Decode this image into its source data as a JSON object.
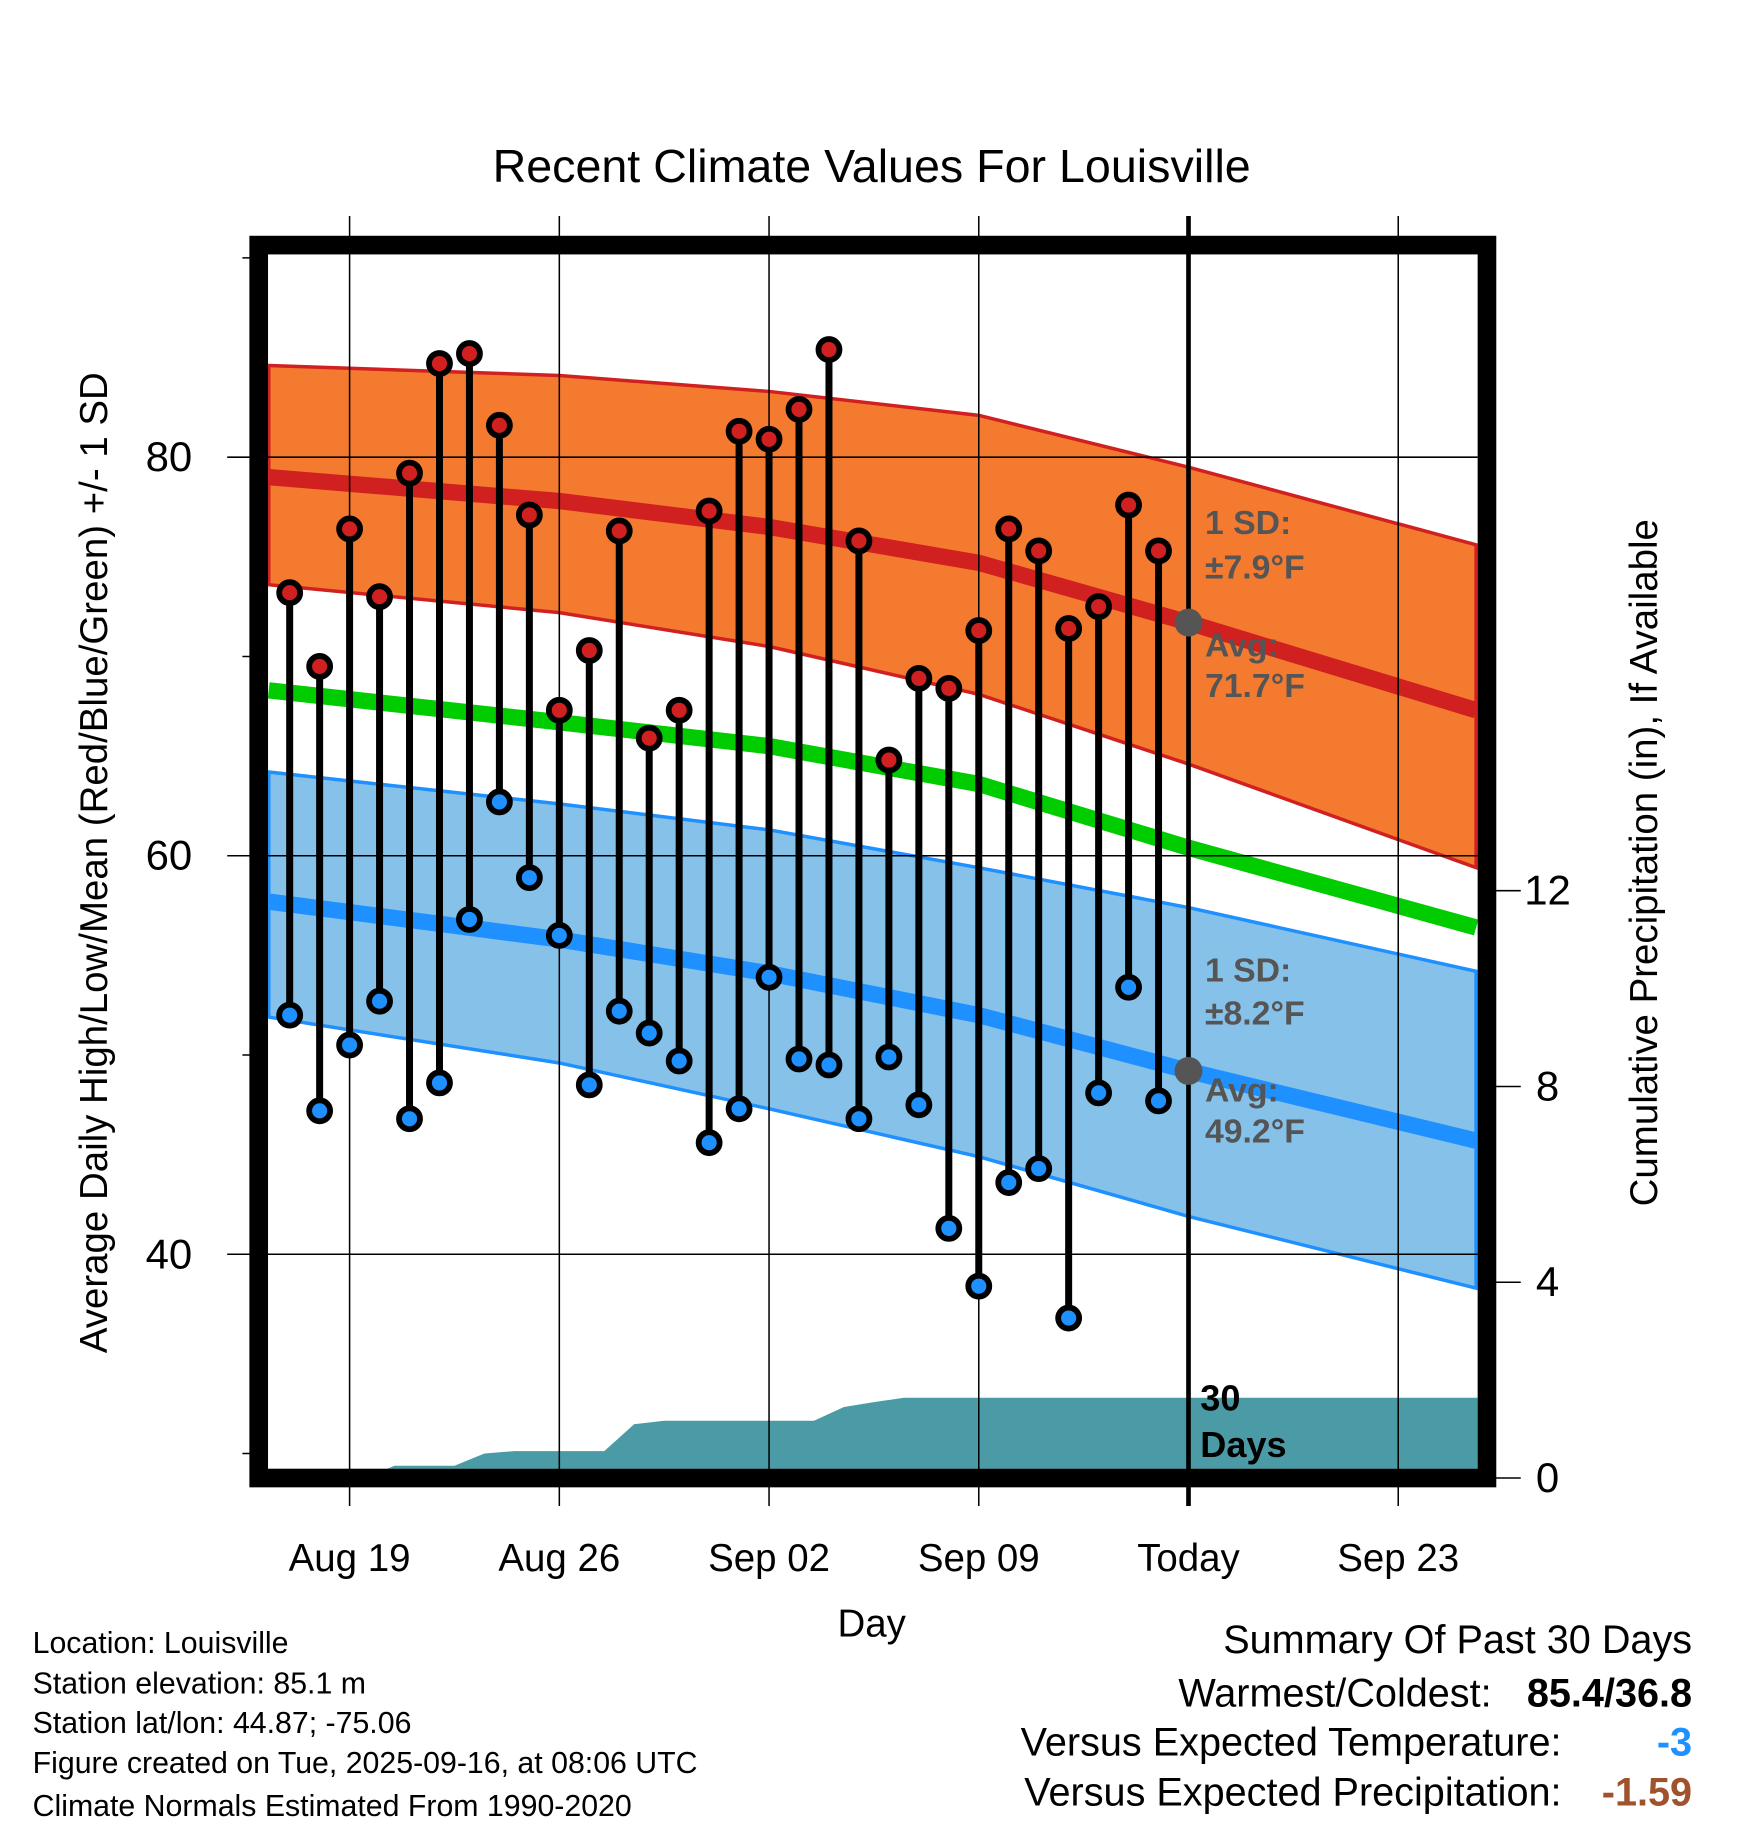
{
  "chart_data": {
    "type": "line",
    "title": "Recent Climate Values For Louisville",
    "xlabel": "Day",
    "ylabel": "Average Daily High/Low/Mean (Red/Blue/Green) +/- 1 SD",
    "y2label": "Cumulative Precipitation (in), If Available",
    "ylim": [
      29.3,
      90.4
    ],
    "y_ticks": [
      40,
      60,
      80
    ],
    "y_minor_ticks": [
      30,
      50,
      70,
      90
    ],
    "y2_ticks": [
      0,
      4,
      8,
      12
    ],
    "x_tick_labels": [
      "Aug 19",
      "Aug 26",
      "Sep 02",
      "Sep 09",
      "Today",
      "Sep 23"
    ],
    "x_tick_days": [
      0,
      7,
      14,
      21,
      28,
      35
    ],
    "xlim_days": [
      -2.7,
      37.6
    ],
    "grid": true,
    "today_day": 28,
    "observed": {
      "dates": [
        "Aug 17",
        "Aug 18",
        "Aug 19",
        "Aug 20",
        "Aug 21",
        "Aug 22",
        "Aug 23",
        "Aug 24",
        "Aug 25",
        "Aug 26",
        "Aug 27",
        "Aug 28",
        "Aug 29",
        "Aug 30",
        "Aug 31",
        "Sep 01",
        "Sep 02",
        "Sep 03",
        "Sep 04",
        "Sep 05",
        "Sep 06",
        "Sep 07",
        "Sep 08",
        "Sep 09",
        "Sep 10",
        "Sep 11",
        "Sep 12",
        "Sep 13",
        "Sep 14",
        "Sep 15"
      ],
      "day_index": [
        -2,
        -1,
        0,
        1,
        2,
        3,
        4,
        5,
        6,
        7,
        8,
        9,
        10,
        11,
        12,
        13,
        14,
        15,
        16,
        17,
        18,
        19,
        20,
        21,
        22,
        23,
        24,
        25,
        26,
        27
      ],
      "highs": [
        73.2,
        69.5,
        76.4,
        73.0,
        79.2,
        84.7,
        85.2,
        81.6,
        77.1,
        67.3,
        70.3,
        76.3,
        65.9,
        67.3,
        77.3,
        81.3,
        80.9,
        82.4,
        85.4,
        75.8,
        64.8,
        68.9,
        68.4,
        71.3,
        76.4,
        75.3,
        71.4,
        72.5,
        77.6,
        75.3
      ],
      "lows": [
        52.0,
        47.2,
        50.5,
        52.7,
        46.8,
        48.6,
        56.8,
        62.7,
        58.9,
        56.0,
        48.5,
        52.2,
        51.1,
        49.7,
        45.6,
        47.3,
        53.9,
        49.8,
        49.5,
        46.8,
        49.9,
        47.5,
        41.3,
        38.4,
        43.6,
        44.3,
        36.8,
        48.1,
        53.4,
        47.7
      ],
      "cumulative_precip_in": [
        0,
        0,
        0,
        0.25,
        0.25,
        0.25,
        0.5,
        0.55,
        0.55,
        0.55,
        0.55,
        1.1,
        1.17,
        1.17,
        1.17,
        1.17,
        1.17,
        1.17,
        1.45,
        1.55,
        1.64,
        1.64,
        1.64,
        1.64,
        1.64,
        1.64,
        1.64,
        1.64,
        1.64,
        1.64
      ]
    },
    "normals": {
      "day_index": [
        -2.7,
        7,
        14,
        21,
        28,
        37.6
      ],
      "high_avg": [
        79.0,
        77.8,
        76.5,
        74.7,
        71.7,
        67.3
      ],
      "high_upper": [
        84.6,
        84.1,
        83.3,
        82.1,
        79.5,
        75.6
      ],
      "high_lower": [
        73.6,
        72.2,
        70.5,
        68.1,
        64.6,
        59.4
      ],
      "mean": [
        68.3,
        66.7,
        65.5,
        63.6,
        60.4,
        56.4
      ],
      "low_avg": [
        57.7,
        55.8,
        54.1,
        52.0,
        49.2,
        45.7
      ],
      "low_upper": [
        64.2,
        62.6,
        61.3,
        59.4,
        57.4,
        54.2
      ],
      "low_lower": [
        51.9,
        49.6,
        47.3,
        44.9,
        41.9,
        38.3
      ]
    },
    "annotations": {
      "high_sd_label": "1 SD:",
      "high_sd_value": "±7.9°F",
      "high_avg_label": "Avg:",
      "high_avg_value": "71.7°F",
      "low_sd_label": "1 SD:",
      "low_sd_value": "±8.2°F",
      "low_avg_label": "Avg:",
      "low_avg_value": "49.2°F",
      "precip_label_1": "30",
      "precip_label_2": "Days"
    },
    "colors": {
      "high_band": "#F47A30",
      "high_line": "#D02020",
      "mean_line": "#00CC00",
      "low_band": "#85C1E9",
      "low_line": "#1E90FF",
      "precip": "#4A9BA5",
      "high_dot": "#D02020",
      "low_dot": "#1E90FF"
    }
  },
  "footer": {
    "location": "Location: Louisville",
    "elevation": "Station elevation: 85.1 m",
    "latlon": "Station lat/lon: 44.87; -75.06",
    "created": "Figure created on Tue, 2025-09-16, at 08:06 UTC",
    "normals": "Climate Normals Estimated From 1990-2020"
  },
  "summary": {
    "title": "Summary Of Past 30 Days",
    "warmest_coldest_label": "Warmest/Coldest:",
    "warmest_coldest_value": "85.4/36.8",
    "temp_label": "Versus Expected Temperature:",
    "temp_value": "-3",
    "temp_color": "#1E90FF",
    "precip_label": "Versus Expected Precipitation:",
    "precip_value": "-1.59",
    "precip_color": "#A0522D"
  }
}
